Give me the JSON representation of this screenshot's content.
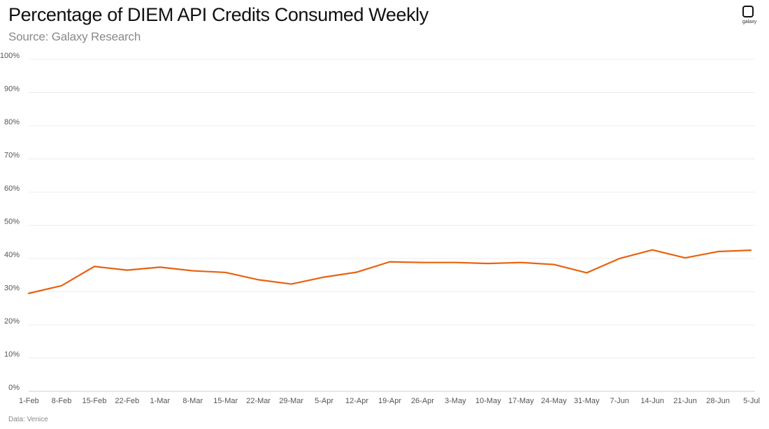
{
  "header": {
    "title": "Percentage of DIEM API Credits Consumed Weekly",
    "subtitle": "Source: Galaxy Research"
  },
  "logo": {
    "icon": "galaxy-logo-icon",
    "text": "galaxy"
  },
  "footnote": "Data: Venice",
  "chart_data": {
    "type": "line",
    "title": "Percentage of DIEM API Credits Consumed Weekly",
    "subtitle": "Source: Galaxy Research",
    "xlabel": "",
    "ylabel": "",
    "ylim": [
      0,
      100
    ],
    "grid": true,
    "legend": "none",
    "x": [
      "1-Feb",
      "8-Feb",
      "15-Feb",
      "22-Feb",
      "1-Mar",
      "8-Mar",
      "15-Mar",
      "22-Mar",
      "29-Mar",
      "5-Apr",
      "12-Apr",
      "19-Apr",
      "26-Apr",
      "3-May",
      "10-May",
      "17-May",
      "24-May",
      "31-May",
      "7-Jun",
      "14-Jun",
      "21-Jun",
      "28-Jun",
      "5-Jul"
    ],
    "y_tick_labels": [
      "0%",
      "10%",
      "20%",
      "30%",
      "40%",
      "50%",
      "60%",
      "70%",
      "80%",
      "90%",
      "100%"
    ],
    "series": [
      {
        "color": "#e8620f",
        "values": [
          29.5,
          31.8,
          37.6,
          36.5,
          37.4,
          36.3,
          35.8,
          33.6,
          32.3,
          34.4,
          35.9,
          39.0,
          38.8,
          38.8,
          38.5,
          38.8,
          38.2,
          35.7,
          40.0,
          42.6,
          40.2,
          42.1,
          42.5
        ]
      }
    ]
  }
}
